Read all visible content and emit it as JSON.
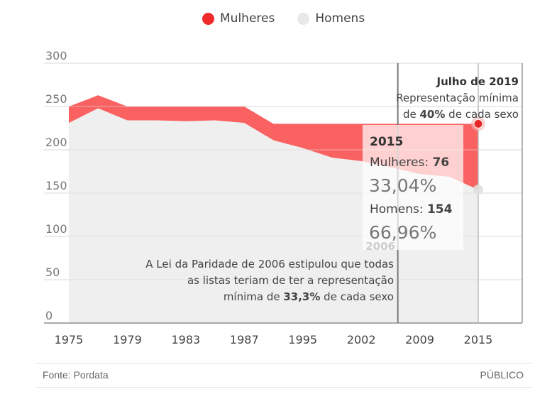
{
  "legend": [
    {
      "label": "Mulheres",
      "color": "#ee2a2a"
    },
    {
      "label": "Homens",
      "color": "#e8e8e8"
    }
  ],
  "chart_data": {
    "type": "area",
    "stacked": true,
    "categories": [
      "1975",
      "1976",
      "1979",
      "1980",
      "1983",
      "1985",
      "1987",
      "1991",
      "1995",
      "1999",
      "2002",
      "2005",
      "2009",
      "2011",
      "2015"
    ],
    "x_tick_labels": [
      "1975",
      "1979",
      "1983",
      "1987",
      "1995",
      "2002",
      "2009",
      "2015"
    ],
    "y_ticks": [
      0,
      50,
      100,
      150,
      200,
      250,
      300
    ],
    "ylim": [
      0,
      300
    ],
    "grid": true,
    "series": [
      {
        "name": "Homens",
        "color": "#efefef",
        "values": [
          231,
          248,
          234,
          234,
          233,
          234,
          231,
          211,
          202,
          191,
          187,
          180,
          172,
          169,
          154
        ]
      },
      {
        "name": "Mulheres",
        "color": "#fa6262",
        "values": [
          19,
          15,
          16,
          16,
          17,
          16,
          19,
          19,
          28,
          39,
          43,
          50,
          58,
          61,
          76
        ]
      }
    ],
    "reference_line": {
      "label": "2006",
      "position": "between 2005 and 2009"
    },
    "annotations": {
      "law": [
        "A Lei da Paridade de 2006 estipulou que todas",
        "as listas teriam de ter a representação",
        "mínima de ",
        "33,3%",
        " de cada sexo"
      ],
      "july2019": {
        "title": "Julho de 2019",
        "line1": "Representação mínima",
        "line2_pre": "de ",
        "line2_bold": "40%",
        "line2_post": " de cada sexo"
      }
    },
    "tooltip": {
      "year": "2015",
      "women_label": "Mulheres: ",
      "women_value": "76",
      "women_pct": "33,04%",
      "men_label": "Homens: ",
      "men_value": "154",
      "men_pct": "66,96%"
    }
  },
  "footer": {
    "source": "Fonte: Pordata",
    "brand": "PÚBLICO"
  }
}
